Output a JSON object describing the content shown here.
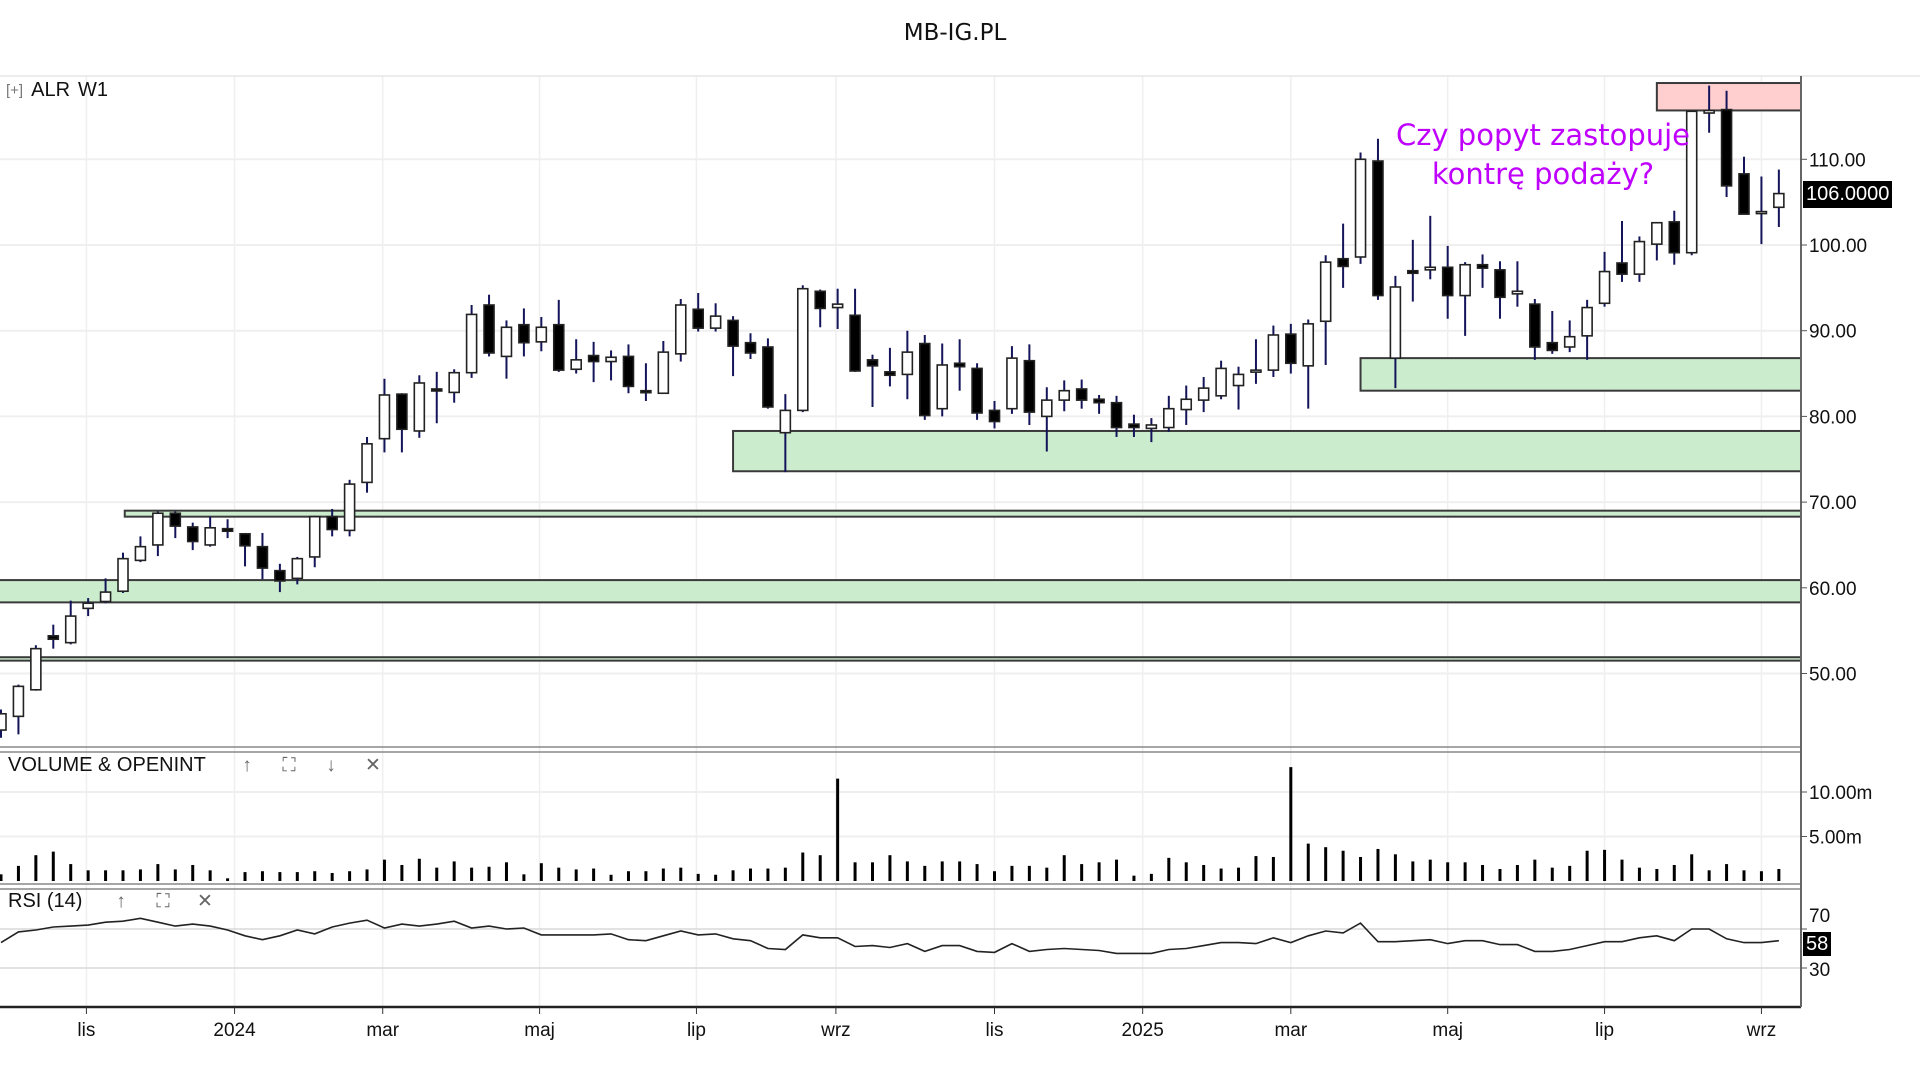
{
  "site_title": "MB-IG.PL",
  "main_pane": {
    "expand_icon": "[+]",
    "symbol": "ALR",
    "timeframe": "W1",
    "last_price_tag": "106.0000"
  },
  "volume_pane": {
    "title": "VOLUME & OPENINT",
    "icons": [
      "arrow-up-icon",
      "fullscreen-icon",
      "arrow-down-icon",
      "close-icon"
    ]
  },
  "rsi_pane": {
    "title": "RSI (14)",
    "last_value_tag": "58",
    "icons": [
      "arrow-up-icon",
      "fullscreen-icon",
      "close-icon"
    ]
  },
  "annotation": {
    "line1": "Czy popyt zastopuje",
    "line2": "kontrę podaży?",
    "color": "#c000ff"
  },
  "chart_data": {
    "type": "candlestick",
    "title": "ALR W1",
    "price_axis": {
      "range": [
        41,
        121
      ],
      "ticks": [
        {
          "v": 110,
          "label": "110.00"
        },
        {
          "v": 100,
          "label": "100.00"
        },
        {
          "v": 90,
          "label": "90.00"
        },
        {
          "v": 80,
          "label": "80.00"
        },
        {
          "v": 70,
          "label": "70.00"
        },
        {
          "v": 60,
          "label": "60.00"
        },
        {
          "v": 50,
          "label": "50.00"
        }
      ]
    },
    "x_axis": {
      "unit": "week index",
      "range": [
        1,
        104
      ],
      "ticks": [
        {
          "x": 5.9,
          "label": "lis"
        },
        {
          "x": 14.4,
          "label": "2024"
        },
        {
          "x": 22.9,
          "label": "mar"
        },
        {
          "x": 31.9,
          "label": "maj"
        },
        {
          "x": 40.9,
          "label": "lip"
        },
        {
          "x": 48.9,
          "label": "wrz"
        },
        {
          "x": 58,
          "label": "lis"
        },
        {
          "x": 66.5,
          "label": "2025"
        },
        {
          "x": 75,
          "label": "mar"
        },
        {
          "x": 84,
          "label": "maj"
        },
        {
          "x": 93,
          "label": "lip"
        },
        {
          "x": 102,
          "label": "wrz"
        }
      ]
    },
    "ohlc": [
      [
        43.4,
        45.8,
        42.5,
        45.3
      ],
      [
        45.0,
        48.7,
        42.9,
        48.5
      ],
      [
        48.1,
        53.3,
        48.0,
        52.9
      ],
      [
        54.4,
        55.7,
        52.9,
        54.0
      ],
      [
        53.6,
        58.5,
        53.4,
        56.7
      ],
      [
        57.6,
        58.8,
        56.7,
        58.2
      ],
      [
        58.4,
        61.1,
        58.2,
        59.5
      ],
      [
        59.6,
        64.1,
        59.4,
        63.4
      ],
      [
        63.2,
        66.0,
        63.0,
        64.8
      ],
      [
        65.0,
        68.9,
        63.7,
        68.7
      ],
      [
        68.7,
        68.9,
        65.8,
        67.2
      ],
      [
        67.1,
        67.6,
        64.4,
        65.4
      ],
      [
        65.0,
        68.3,
        64.8,
        67.0
      ],
      [
        66.9,
        68.0,
        65.8,
        66.6
      ],
      [
        66.3,
        66.4,
        62.5,
        64.9
      ],
      [
        64.8,
        66.4,
        61.0,
        62.3
      ],
      [
        62.0,
        62.8,
        59.5,
        60.8
      ],
      [
        61.1,
        63.6,
        60.4,
        63.4
      ],
      [
        63.6,
        68.4,
        62.4,
        68.3
      ],
      [
        68.3,
        69.2,
        66.0,
        66.8
      ],
      [
        66.7,
        72.6,
        66.0,
        72.1
      ],
      [
        72.3,
        77.6,
        71.1,
        76.8
      ],
      [
        77.4,
        84.4,
        75.8,
        82.5
      ],
      [
        82.6,
        82.7,
        75.8,
        78.5
      ],
      [
        78.3,
        84.8,
        77.5,
        83.9
      ],
      [
        83.2,
        85.2,
        79.2,
        83.0
      ],
      [
        82.8,
        85.5,
        81.6,
        85.1
      ],
      [
        85.1,
        93.0,
        84.5,
        91.9
      ],
      [
        93.0,
        94.2,
        87.0,
        87.4
      ],
      [
        87.0,
        91.2,
        84.4,
        90.4
      ],
      [
        90.7,
        92.6,
        87.0,
        88.6
      ],
      [
        88.7,
        91.6,
        87.6,
        90.4
      ],
      [
        90.7,
        93.6,
        85.2,
        85.4
      ],
      [
        85.5,
        89.0,
        85.0,
        86.6
      ],
      [
        87.1,
        88.7,
        84.0,
        86.4
      ],
      [
        86.4,
        87.7,
        84.2,
        86.9
      ],
      [
        87.0,
        88.4,
        82.7,
        83.5
      ],
      [
        83.0,
        86.2,
        81.8,
        82.8
      ],
      [
        82.7,
        88.8,
        82.7,
        87.5
      ],
      [
        87.3,
        93.7,
        86.4,
        93.0
      ],
      [
        92.5,
        94.4,
        89.9,
        90.3
      ],
      [
        90.3,
        93.2,
        89.9,
        91.7
      ],
      [
        91.2,
        91.7,
        84.7,
        88.2
      ],
      [
        88.6,
        89.7,
        86.7,
        87.4
      ],
      [
        88.1,
        89.1,
        80.9,
        81.1
      ],
      [
        78.1,
        82.6,
        73.5,
        80.7
      ],
      [
        80.7,
        95.3,
        80.5,
        94.9
      ],
      [
        94.6,
        94.8,
        90.4,
        92.6
      ],
      [
        92.7,
        94.9,
        90.2,
        93.1
      ],
      [
        91.8,
        94.9,
        85.2,
        85.3
      ],
      [
        86.6,
        87.2,
        81.1,
        85.9
      ],
      [
        85.2,
        88.0,
        83.5,
        84.8
      ],
      [
        84.9,
        90.0,
        82.0,
        87.5
      ],
      [
        88.5,
        89.5,
        79.6,
        80.1
      ],
      [
        80.9,
        88.5,
        80.0,
        86.0
      ],
      [
        86.2,
        89.0,
        83.0,
        85.8
      ],
      [
        85.6,
        86.2,
        79.6,
        80.4
      ],
      [
        80.7,
        81.8,
        78.6,
        79.4
      ],
      [
        80.9,
        88.2,
        80.3,
        86.8
      ],
      [
        86.5,
        88.4,
        79.0,
        80.5
      ],
      [
        80.0,
        83.4,
        75.9,
        81.9
      ],
      [
        81.9,
        84.2,
        80.6,
        83.0
      ],
      [
        83.2,
        84.3,
        80.9,
        81.9
      ],
      [
        82.0,
        82.5,
        80.3,
        81.6
      ],
      [
        81.6,
        82.4,
        77.6,
        78.7
      ],
      [
        79.1,
        80.2,
        77.6,
        78.7
      ],
      [
        78.6,
        79.8,
        77.0,
        79.0
      ],
      [
        78.7,
        82.4,
        78.2,
        80.9
      ],
      [
        80.8,
        83.6,
        79.0,
        82.0
      ],
      [
        81.9,
        84.6,
        80.5,
        83.3
      ],
      [
        82.4,
        86.5,
        82.0,
        85.6
      ],
      [
        83.6,
        85.8,
        80.8,
        84.9
      ],
      [
        85.3,
        89.0,
        83.8,
        85.4
      ],
      [
        85.4,
        90.6,
        84.6,
        89.5
      ],
      [
        89.6,
        90.8,
        85.0,
        86.2
      ],
      [
        85.9,
        91.3,
        80.9,
        90.8
      ],
      [
        91.1,
        98.8,
        86.0,
        98.0
      ],
      [
        98.4,
        102.5,
        95.0,
        97.5
      ],
      [
        98.6,
        110.8,
        97.8,
        110.0
      ],
      [
        109.8,
        112.4,
        93.6,
        94.1
      ],
      [
        86.8,
        96.4,
        83.3,
        95.1
      ],
      [
        97.0,
        100.6,
        93.4,
        96.7
      ],
      [
        97.1,
        103.4,
        96.0,
        97.4
      ],
      [
        97.4,
        99.9,
        91.4,
        94.1
      ],
      [
        94.1,
        98.0,
        89.4,
        97.7
      ],
      [
        97.7,
        98.9,
        95.0,
        97.3
      ],
      [
        97.1,
        98.1,
        91.4,
        93.9
      ],
      [
        94.3,
        98.1,
        92.8,
        94.6
      ],
      [
        93.1,
        93.7,
        86.6,
        88.1
      ],
      [
        88.6,
        92.3,
        87.3,
        87.7
      ],
      [
        88.1,
        91.2,
        87.5,
        89.3
      ],
      [
        89.4,
        93.6,
        86.6,
        92.7
      ],
      [
        93.2,
        99.2,
        92.8,
        96.9
      ],
      [
        97.9,
        102.8,
        95.7,
        96.6
      ],
      [
        96.6,
        101.0,
        95.7,
        100.4
      ],
      [
        100.1,
        102.6,
        98.2,
        102.6
      ],
      [
        102.7,
        104.0,
        97.7,
        99.1
      ],
      [
        99.1,
        115.6,
        98.8,
        115.6
      ],
      [
        115.4,
        118.6,
        113.1,
        115.7
      ],
      [
        115.8,
        118.0,
        105.6,
        106.9
      ],
      [
        108.3,
        110.3,
        103.6,
        103.6
      ],
      [
        103.9,
        108.0,
        100.1,
        103.9
      ],
      [
        104.4,
        108.8,
        102.1,
        106.0
      ]
    ],
    "zones": [
      {
        "kind": "supply",
        "color": "#ffcccc",
        "x_from": 96,
        "price_low": 115.7,
        "price_high": 118.9
      },
      {
        "kind": "demand",
        "color": "#c9ebcb",
        "x_from": 79,
        "price_low": 83.0,
        "price_high": 86.8
      },
      {
        "kind": "demand",
        "color": "#c9ebcb",
        "x_from": 43,
        "price_low": 73.6,
        "price_high": 78.3
      },
      {
        "kind": "demand",
        "color": "#c9ebcb",
        "x_from": 8.1,
        "price_low": 68.3,
        "price_high": 69.0
      },
      {
        "kind": "demand",
        "color": "#c9ebcb",
        "x_from": 0,
        "price_low": 58.3,
        "price_high": 60.9
      },
      {
        "kind": "demand",
        "color": "#c9ebcb",
        "x_from": 0,
        "price_low": 51.5,
        "price_high": 51.9
      }
    ],
    "volume": {
      "unit": "m",
      "ticks": [
        {
          "v": 10,
          "label": "10.00m"
        },
        {
          "v": 5,
          "label": "5.00m"
        }
      ],
      "values": [
        0.75,
        1.7,
        2.9,
        3.3,
        1.9,
        1.2,
        1.2,
        1.2,
        1.3,
        1.9,
        1.3,
        1.8,
        1.2,
        0.3,
        1.0,
        1.1,
        1.0,
        1.0,
        1.1,
        0.9,
        1.1,
        1.3,
        2.4,
        1.8,
        2.5,
        1.5,
        2.2,
        1.5,
        1.6,
        2.1,
        0.75,
        2.0,
        1.5,
        1.3,
        1.4,
        0.7,
        1.1,
        1.1,
        1.4,
        1.5,
        0.8,
        0.7,
        1.2,
        1.4,
        1.4,
        1.5,
        3.2,
        2.9,
        11.5,
        2.1,
        2.1,
        2.9,
        2.2,
        1.7,
        2.2,
        2.2,
        1.9,
        1.1,
        1.7,
        1.7,
        1.5,
        2.9,
        1.9,
        2.1,
        2.4,
        0.6,
        0.8,
        2.6,
        2.1,
        1.8,
        1.4,
        1.5,
        2.8,
        2.7,
        12.8,
        4.2,
        3.8,
        3.4,
        2.7,
        3.6,
        3.0,
        2.2,
        2.4,
        2.1,
        2.1,
        1.8,
        1.35,
        1.8,
        2.4,
        1.5,
        1.7,
        3.4,
        3.5,
        2.4,
        1.5,
        1.35,
        1.8,
        3.0,
        1.2,
        1.9,
        1.2,
        1.1,
        1.35
      ]
    },
    "rsi": {
      "period": 14,
      "ticks": [
        {
          "v": 70,
          "label": "70"
        },
        {
          "v": 30,
          "label": "30"
        }
      ],
      "values": [
        56,
        67,
        69,
        72,
        73,
        74,
        77,
        78,
        81,
        77,
        73,
        75,
        73,
        69,
        63,
        59,
        63,
        69,
        65,
        72,
        76,
        79,
        71,
        75,
        73,
        75,
        78,
        71,
        73,
        70,
        71,
        64,
        64,
        64,
        64,
        65,
        59,
        58,
        63,
        68,
        64,
        65,
        60,
        58,
        50,
        49,
        64,
        61,
        61,
        52,
        53,
        51,
        55,
        47,
        53,
        53,
        47,
        46,
        55,
        47,
        49,
        50,
        49,
        48,
        45,
        45,
        45,
        49,
        50,
        53,
        56,
        56,
        55,
        61,
        56,
        63,
        68,
        66,
        76,
        57,
        57,
        58,
        59,
        55,
        58,
        58,
        54,
        54,
        47,
        47,
        49,
        53,
        57,
        57,
        61,
        63,
        58,
        70,
        70,
        60,
        56,
        56,
        58
      ]
    }
  }
}
